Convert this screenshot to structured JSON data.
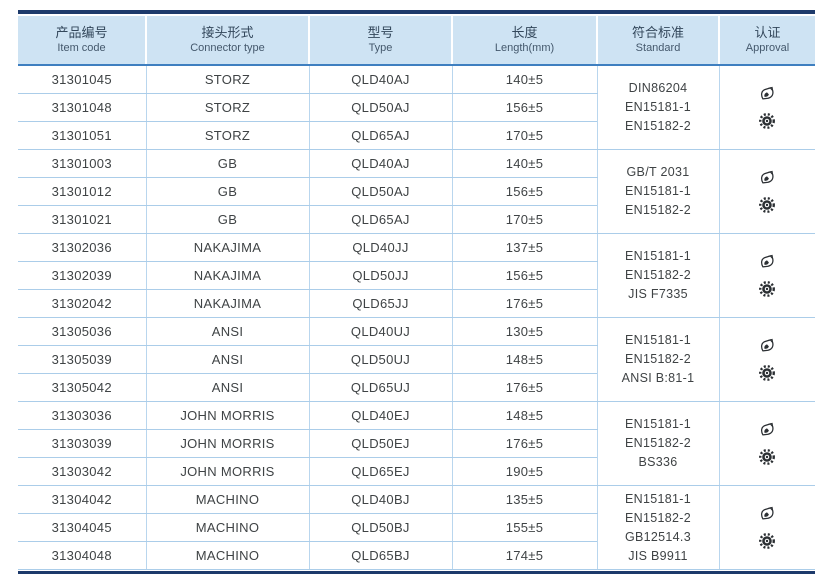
{
  "table": {
    "headers": [
      {
        "zh": "产品编号",
        "en": "Item code"
      },
      {
        "zh": "接头形式",
        "en": "Connector type"
      },
      {
        "zh": "型号",
        "en": "Type"
      },
      {
        "zh": "长度",
        "en": "Length(mm)"
      },
      {
        "zh": "符合标准",
        "en": "Standard"
      },
      {
        "zh": "认证",
        "en": "Approval"
      }
    ],
    "groups": [
      {
        "rows": [
          {
            "item_code": "31301045",
            "connector_type": "STORZ",
            "type": "QLD40AJ",
            "length": "140±5"
          },
          {
            "item_code": "31301048",
            "connector_type": "STORZ",
            "type": "QLD50AJ",
            "length": "156±5"
          },
          {
            "item_code": "31301051",
            "connector_type": "STORZ",
            "type": "QLD65AJ",
            "length": "170±5"
          }
        ],
        "standards": [
          "DIN86204",
          "EN15181-1",
          "EN15182-2"
        ],
        "approval_icons": [
          "certification-mark",
          "wheelmark"
        ]
      },
      {
        "rows": [
          {
            "item_code": "31301003",
            "connector_type": "GB",
            "type": "QLD40AJ",
            "length": "140±5"
          },
          {
            "item_code": "31301012",
            "connector_type": "GB",
            "type": "QLD50AJ",
            "length": "156±5"
          },
          {
            "item_code": "31301021",
            "connector_type": "GB",
            "type": "QLD65AJ",
            "length": "170±5"
          }
        ],
        "standards": [
          "GB/T 2031",
          "EN15181-1",
          "EN15182-2"
        ],
        "approval_icons": [
          "certification-mark",
          "wheelmark"
        ]
      },
      {
        "rows": [
          {
            "item_code": "31302036",
            "connector_type": "NAKAJIMA",
            "type": "QLD40JJ",
            "length": "137±5"
          },
          {
            "item_code": "31302039",
            "connector_type": "NAKAJIMA",
            "type": "QLD50JJ",
            "length": "156±5"
          },
          {
            "item_code": "31302042",
            "connector_type": "NAKAJIMA",
            "type": "QLD65JJ",
            "length": "176±5"
          }
        ],
        "standards": [
          "EN15181-1",
          "EN15182-2",
          "JIS F7335"
        ],
        "approval_icons": [
          "certification-mark",
          "wheelmark"
        ]
      },
      {
        "rows": [
          {
            "item_code": "31305036",
            "connector_type": "ANSI",
            "type": "QLD40UJ",
            "length": "130±5"
          },
          {
            "item_code": "31305039",
            "connector_type": "ANSI",
            "type": "QLD50UJ",
            "length": "148±5"
          },
          {
            "item_code": "31305042",
            "connector_type": "ANSI",
            "type": "QLD65UJ",
            "length": "176±5"
          }
        ],
        "standards": [
          "EN15181-1",
          "EN15182-2",
          "ANSI B:81-1"
        ],
        "approval_icons": [
          "certification-mark",
          "wheelmark"
        ]
      },
      {
        "rows": [
          {
            "item_code": "31303036",
            "connector_type": "JOHN MORRIS",
            "type": "QLD40EJ",
            "length": "148±5"
          },
          {
            "item_code": "31303039",
            "connector_type": "JOHN MORRIS",
            "type": "QLD50EJ",
            "length": "176±5"
          },
          {
            "item_code": "31303042",
            "connector_type": "JOHN MORRIS",
            "type": "QLD65EJ",
            "length": "190±5"
          }
        ],
        "standards": [
          "EN15181-1",
          "EN15182-2",
          "BS336"
        ],
        "approval_icons": [
          "certification-mark",
          "wheelmark"
        ]
      },
      {
        "rows": [
          {
            "item_code": "31304042",
            "connector_type": "MACHINO",
            "type": "QLD40BJ",
            "length": "135±5"
          },
          {
            "item_code": "31304045",
            "connector_type": "MACHINO",
            "type": "QLD50BJ",
            "length": "155±5"
          },
          {
            "item_code": "31304048",
            "connector_type": "MACHINO",
            "type": "QLD65BJ",
            "length": "174±5"
          }
        ],
        "standards": [
          "EN15181-1",
          "EN15182-2",
          "GB12514.3",
          "JIS B9911"
        ],
        "approval_icons": [
          "certification-mark",
          "wheelmark"
        ]
      }
    ]
  },
  "colors": {
    "navy_border": "#1d3a6b",
    "header_bg": "#cee3f3",
    "header_underline": "#3f7fc0",
    "grid_line": "#abcde9",
    "text": "#3f4345"
  }
}
